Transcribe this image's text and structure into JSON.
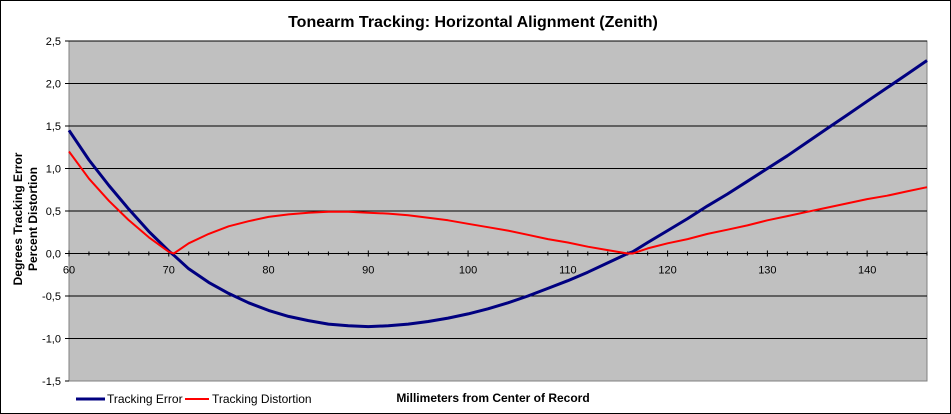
{
  "chart_data": {
    "type": "line",
    "title": "Tonearm Tracking:  Horizontal Alignment (Zenith)",
    "xlabel": "Millimeters from Center of Record",
    "ylabel": [
      "Degrees Tracking Error",
      "Percent Distortion"
    ],
    "xlim": [
      60,
      146
    ],
    "ylim": [
      -1.5,
      2.5
    ],
    "x_ticks": [
      60,
      70,
      80,
      90,
      100,
      110,
      120,
      130,
      140
    ],
    "y_ticks": [
      "-1,5",
      "-1,0",
      "-0,5",
      "0,0",
      "0,5",
      "1,0",
      "1,5",
      "2,0",
      "2,5"
    ],
    "y_tick_values": [
      -1.5,
      -1.0,
      -0.5,
      0.0,
      0.5,
      1.0,
      1.5,
      2.0,
      2.5
    ],
    "grid": "horizontal",
    "legend_position": "bottom-left",
    "colors": {
      "plot_background": "#c0c0c0",
      "grid": "#000000"
    },
    "series": [
      {
        "name": "Tracking Error",
        "color": "#000080",
        "x": [
          60,
          62,
          64,
          66,
          68,
          70,
          70.5,
          72,
          74,
          76,
          78,
          80,
          82,
          84,
          86,
          88,
          90,
          92,
          94,
          96,
          98,
          100,
          102,
          104,
          106,
          108,
          110,
          112,
          114,
          116,
          116.5,
          118,
          120,
          122,
          124,
          126,
          128,
          130,
          132,
          134,
          136,
          138,
          140,
          142,
          144,
          146
        ],
        "values": [
          1.45,
          1.1,
          0.8,
          0.52,
          0.26,
          0.03,
          -0.02,
          -0.18,
          -0.34,
          -0.47,
          -0.58,
          -0.67,
          -0.74,
          -0.79,
          -0.83,
          -0.85,
          -0.86,
          -0.85,
          -0.83,
          -0.8,
          -0.76,
          -0.71,
          -0.65,
          -0.58,
          -0.5,
          -0.41,
          -0.32,
          -0.22,
          -0.11,
          0.0,
          0.02,
          0.13,
          0.27,
          0.41,
          0.56,
          0.7,
          0.85,
          1.0,
          1.15,
          1.31,
          1.47,
          1.63,
          1.79,
          1.95,
          2.11,
          2.27
        ]
      },
      {
        "name": "Tracking Distortion",
        "color": "#ff0000",
        "x": [
          60,
          62,
          64,
          66,
          68,
          70,
          70.5,
          72,
          74,
          76,
          78,
          80,
          82,
          84,
          86,
          88,
          90,
          92,
          94,
          96,
          98,
          100,
          102,
          104,
          106,
          108,
          110,
          112,
          114,
          116,
          116.5,
          118,
          120,
          122,
          124,
          126,
          128,
          130,
          132,
          134,
          136,
          138,
          140,
          142,
          144,
          146
        ],
        "values": [
          1.2,
          0.88,
          0.62,
          0.39,
          0.19,
          0.02,
          0.0,
          0.12,
          0.23,
          0.32,
          0.38,
          0.43,
          0.46,
          0.48,
          0.49,
          0.49,
          0.48,
          0.47,
          0.45,
          0.42,
          0.39,
          0.35,
          0.31,
          0.27,
          0.22,
          0.17,
          0.13,
          0.08,
          0.04,
          0.0,
          0.0,
          0.06,
          0.12,
          0.17,
          0.23,
          0.28,
          0.33,
          0.39,
          0.44,
          0.49,
          0.54,
          0.59,
          0.64,
          0.68,
          0.73,
          0.78
        ]
      }
    ]
  }
}
